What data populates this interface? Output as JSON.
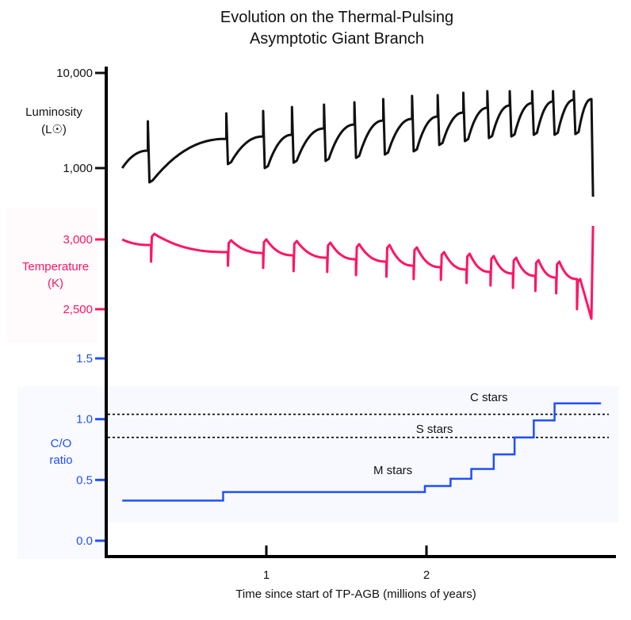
{
  "chart_data": [
    {
      "type": "line",
      "title": "Evolution on the Thermal-Pulsing Asymptotic Giant Branch",
      "title_lines": [
        "Evolution on the Thermal-Pulsing",
        "Asymptotic Giant Branch"
      ],
      "xlabel": "Time since start of TP-AGB (millions of years)",
      "x_ticks": [
        "1",
        "2"
      ],
      "x_tick_values": [
        1,
        2
      ],
      "xlim": [
        0,
        3.2
      ],
      "panels": {
        "luminosity": {
          "ylabel_lines": [
            "Luminosity",
            "(L☉)"
          ],
          "scale": "log",
          "y_ticks": [
            "10,000",
            "1,000"
          ],
          "y_tick_values": [
            10000,
            1000
          ],
          "color": "#111111",
          "start": [
            0.1,
            1000
          ],
          "pulses_t_pre_peak_dip": [
            [
              0.26,
              1525,
              3100,
              708
            ],
            [
              0.75,
              2030,
              3760,
              1100
            ],
            [
              0.98,
              2150,
              3980,
              1000
            ],
            [
              1.16,
              2240,
              4380,
              1140
            ],
            [
              1.36,
              2610,
              4640,
              1190
            ],
            [
              1.55,
              2870,
              4920,
              1280
            ],
            [
              1.73,
              3160,
              5310,
              1390
            ],
            [
              1.91,
              3290,
              5730,
              1500
            ],
            [
              2.07,
              3480,
              5840,
              1750
            ],
            [
              2.23,
              3830,
              6190,
              1920
            ],
            [
              2.38,
              4300,
              6430,
              2070
            ],
            [
              2.52,
              4550,
              6430,
              2150
            ],
            [
              2.66,
              4820,
              6430,
              2240
            ],
            [
              2.79,
              5010,
              6430,
              2240
            ],
            [
              2.92,
              5210,
              6430,
              2280
            ]
          ],
          "end": [
            [
              3.03,
              5310
            ],
            [
              3.04,
              500
            ]
          ]
        },
        "temperature": {
          "ylabel_lines": [
            "Temperature",
            "(K)"
          ],
          "y_ticks": [
            "3,000",
            "2,500"
          ],
          "y_tick_values": [
            3000,
            2500
          ],
          "color": "#ff1466",
          "start": [
            0.1,
            3000
          ],
          "pulses_t_pre_dip_post": [
            [
              0.28,
              2960,
              2841,
              3040
            ],
            [
              0.76,
              2909,
              2812,
              2994
            ],
            [
              0.98,
              2903,
              2796,
              3000
            ],
            [
              1.17,
              2886,
              2773,
              2989
            ],
            [
              1.38,
              2869,
              2767,
              2977
            ],
            [
              1.56,
              2858,
              2744,
              2966
            ],
            [
              1.75,
              2841,
              2733,
              2960
            ],
            [
              1.92,
              2812,
              2716,
              2943
            ],
            [
              2.09,
              2801,
              2710,
              2909
            ],
            [
              2.25,
              2784,
              2688,
              2898
            ],
            [
              2.4,
              2767,
              2670,
              2881
            ],
            [
              2.54,
              2756,
              2653,
              2869
            ],
            [
              2.68,
              2739,
              2631,
              2852
            ],
            [
              2.81,
              2727,
              2614,
              2841
            ],
            [
              2.94,
              2716,
              2500,
              2716
            ]
          ],
          "end": [
            [
              3.03,
              2432
            ],
            [
              3.04,
              3097
            ]
          ]
        },
        "co_ratio": {
          "ylabel_lines": [
            "C/O",
            "ratio"
          ],
          "y_ticks": [
            "1.5",
            "1.0",
            "0.5",
            "0.0"
          ],
          "y_tick_values": [
            1.5,
            1.0,
            0.5,
            0.0
          ],
          "color": "#1f4fff",
          "steps_t_end_value": [
            [
              0.73,
              0.33
            ],
            [
              1.99,
              0.4
            ],
            [
              2.15,
              0.45
            ],
            [
              2.28,
              0.51
            ],
            [
              2.42,
              0.59
            ],
            [
              2.55,
              0.71
            ],
            [
              2.67,
              0.85
            ],
            [
              2.8,
              0.99
            ],
            [
              3.09,
              1.13
            ]
          ],
          "start_t": 0.1,
          "thresholds": [
            1.04,
            0.85
          ],
          "zones": [
            {
              "label": "C stars",
              "t": 2.39,
              "value": 1.18
            },
            {
              "label": "S stars",
              "t": 2.05,
              "value": 0.92
            },
            {
              "label": "M stars",
              "t": 1.79,
              "value": 0.58
            }
          ]
        }
      }
    }
  ]
}
